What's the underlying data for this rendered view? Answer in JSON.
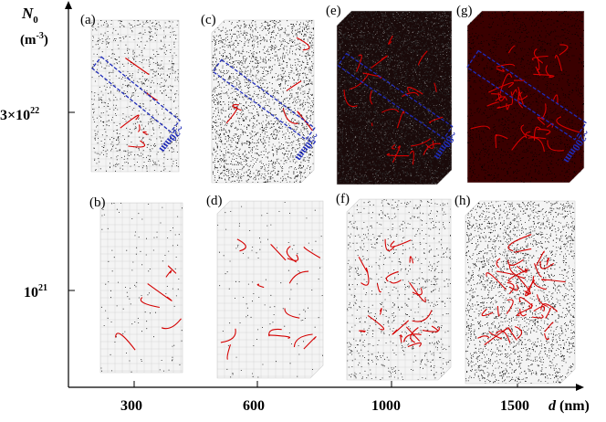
{
  "y_axis": {
    "symbol": "N",
    "subscript": "0",
    "unit_prefix": "(m",
    "unit_exp": "-3",
    "unit_suffix": ")",
    "ticks": [
      {
        "mantissa": "3×10",
        "exp": "22"
      },
      {
        "mantissa": "10",
        "exp": "21"
      }
    ]
  },
  "x_axis": {
    "ticks": [
      "300",
      "600",
      "1000",
      "1500"
    ],
    "label_symbol": "d",
    "label_unit": " (nm)"
  },
  "panels": [
    {
      "label": "(a)",
      "d": "300",
      "N0": "3×10^22",
      "scale": "~20nm",
      "density": "medium",
      "lines": "few"
    },
    {
      "label": "(c)",
      "d": "600",
      "N0": "3×10^22",
      "scale": "~50nm",
      "density": "dense",
      "lines": "few"
    },
    {
      "label": "(e)",
      "d": "1000",
      "N0": "3×10^22",
      "scale": "~80nm",
      "density": "very-dense",
      "lines": "many"
    },
    {
      "label": "(g)",
      "d": "1500",
      "N0": "3×10^22",
      "scale": "~200nm",
      "density": "saturated",
      "lines": "tangle"
    },
    {
      "label": "(b)",
      "d": "300",
      "N0": "10^21",
      "scale": "",
      "density": "sparse",
      "lines": "few"
    },
    {
      "label": "(d)",
      "d": "600",
      "N0": "10^21",
      "scale": "",
      "density": "sparse",
      "lines": "some"
    },
    {
      "label": "(f)",
      "d": "1000",
      "N0": "10^21",
      "scale": "",
      "density": "medium",
      "lines": "many"
    },
    {
      "label": "(h)",
      "d": "1500",
      "N0": "10^21",
      "scale": "",
      "density": "dense",
      "lines": "tangle"
    }
  ],
  "colors": {
    "dislocation": "#d40000",
    "scale_box": "#1f2bb8",
    "atoms": "#000000",
    "grid": "#bdbdbd",
    "dense_bg": "#3a0000"
  }
}
